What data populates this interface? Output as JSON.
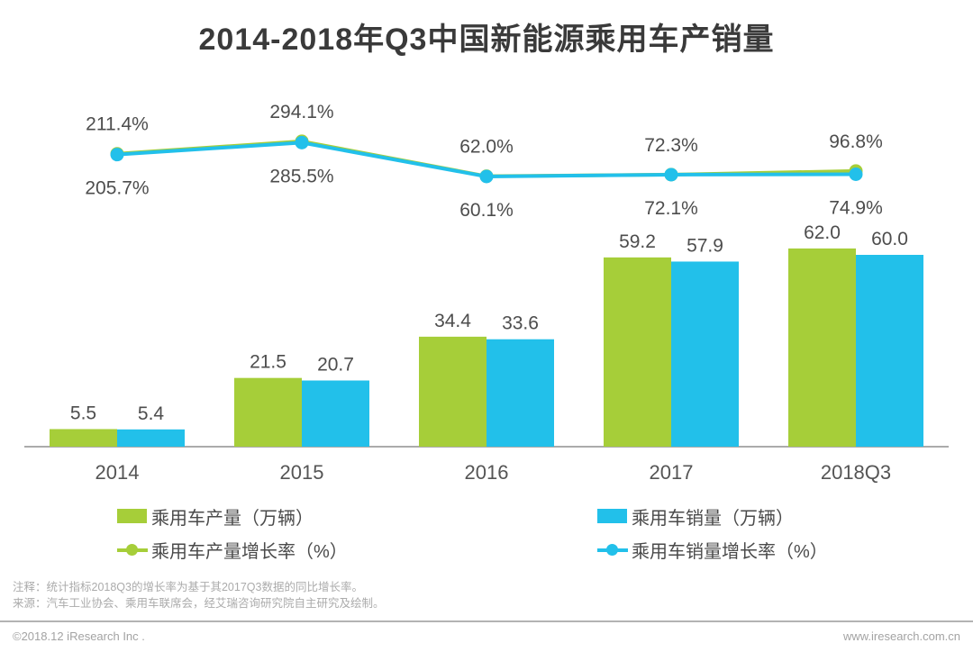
{
  "title": "2014-2018年Q3中国新能源乘用车产销量",
  "chart_data": {
    "type": "bar",
    "subtype": "grouped-bars-with-growth-lines",
    "categories": [
      "2014",
      "2015",
      "2016",
      "2017",
      "2018Q3"
    ],
    "bar_series": [
      {
        "name": "乘用车产量（万辆）",
        "color": "#a6ce39",
        "values": [
          5.5,
          21.5,
          34.4,
          59.2,
          62.0
        ]
      },
      {
        "name": "乘用车销量（万辆）",
        "color": "#22c0ea",
        "values": [
          5.4,
          20.7,
          33.6,
          57.9,
          60.0
        ]
      }
    ],
    "line_series": [
      {
        "name": "乘用车产量增长率（%）",
        "color": "#a6ce39",
        "values": [
          211.4,
          294.1,
          62.0,
          72.3,
          96.8
        ]
      },
      {
        "name": "乘用车销量增长率（%）",
        "color": "#22c0ea",
        "values": [
          205.7,
          285.5,
          60.1,
          72.1,
          74.9
        ]
      }
    ],
    "bar_ylim": [
      0,
      70
    ],
    "line_ylim": [
      0,
      320
    ],
    "grid": false,
    "legend_position": "bottom",
    "title": "2014-2018年Q3中国新能源乘用车产销量",
    "xlabel": "",
    "ylabel": ""
  },
  "legend": {
    "items": [
      {
        "label": "乘用车产量（万辆）",
        "marker": "square",
        "color": "#a6ce39"
      },
      {
        "label": "乘用车销量（万辆）",
        "marker": "square",
        "color": "#22c0ea"
      },
      {
        "label": "乘用车产量增长率（%）",
        "marker": "line-dot",
        "color": "#a6ce39"
      },
      {
        "label": "乘用车销量增长率（%）",
        "marker": "line-dot",
        "color": "#22c0ea"
      }
    ]
  },
  "notes": {
    "line1": "注释：统计指标2018Q3的增长率为基于其2017Q3数据的同比增长率。",
    "line2": "来源：汽车工业协会、乘用车联席会，经艾瑞咨询研究院自主研究及绘制。"
  },
  "footer": {
    "left": "©2018.12 iResearch Inc .",
    "right": "www.iresearch.com.cn"
  },
  "colors": {
    "production": "#a6ce39",
    "sales": "#22c0ea",
    "title_text": "#3a3a3a",
    "value_label_text": "#4d4d4d",
    "axis_label_text": "#555555",
    "axis_line": "#8f8f8f",
    "note_text": "#ababab",
    "footer_text": "#a3a3a3"
  }
}
